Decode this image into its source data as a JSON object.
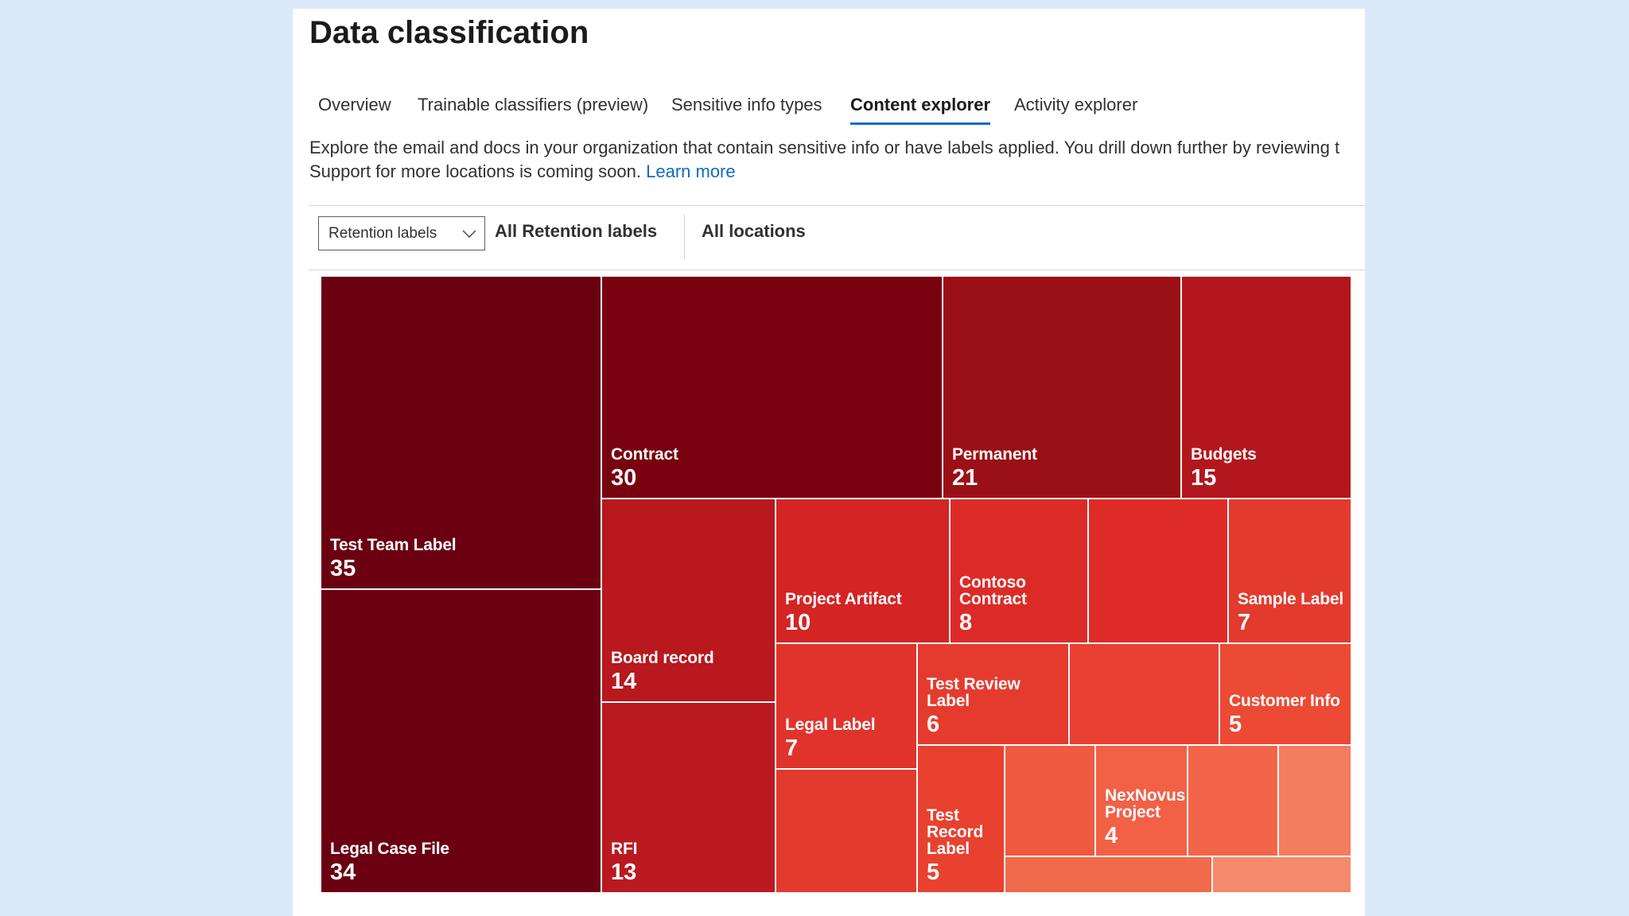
{
  "page": {
    "title": "Data classification"
  },
  "tabs": [
    {
      "label": "Overview",
      "active": false
    },
    {
      "label": "Trainable classifiers (preview)",
      "active": false
    },
    {
      "label": "Sensitive info types",
      "active": false
    },
    {
      "label": "Content explorer",
      "active": true
    },
    {
      "label": "Activity explorer",
      "active": false
    }
  ],
  "description": {
    "line1": "Explore the email and docs in your organization that contain sensitive info or have labels applied. You drill down further by reviewing t",
    "line2": "Support for more locations is coming soon.",
    "learn_more": "Learn more"
  },
  "filters": {
    "dropdown_value": "Retention labels",
    "dropdown_icon": "chevron-down-icon",
    "retention_filter": "All Retention labels",
    "location_filter": "All locations"
  },
  "colors": {
    "accent": "#0f6cbd",
    "link": "#0f6cbd"
  },
  "chart_data": {
    "type": "treemap",
    "title": "Retention labels",
    "items": [
      {
        "label": "Test Team Label",
        "value": 35,
        "color": "#6a0010"
      },
      {
        "label": "Legal Case File",
        "value": 34,
        "color": "#6b0011"
      },
      {
        "label": "Contract",
        "value": 30,
        "color": "#79020f"
      },
      {
        "label": "Permanent",
        "value": 21,
        "color": "#9b1016"
      },
      {
        "label": "Budgets",
        "value": 15,
        "color": "#b3171d"
      },
      {
        "label": "Board record",
        "value": 14,
        "color": "#b8181e"
      },
      {
        "label": "RFI",
        "value": 13,
        "color": "#ba1a1f"
      },
      {
        "label": "Project Artifact",
        "value": 10,
        "color": "#d42424"
      },
      {
        "label": "Contoso Contract",
        "value": 8,
        "color": "#dc2b27"
      },
      {
        "label": "",
        "value": null,
        "color": "#df2b27"
      },
      {
        "label": "Sample Label",
        "value": 7,
        "color": "#e33a2e"
      },
      {
        "label": "Legal Label",
        "value": 7,
        "color": "#e0332b"
      },
      {
        "label": "Test Review Label",
        "value": 6,
        "color": "#e53b2f"
      },
      {
        "label": "",
        "value": null,
        "color": "#e84033"
      },
      {
        "label": "Customer Info",
        "value": 5,
        "color": "#ec4a35"
      },
      {
        "label": "",
        "value": null,
        "color": "#e33a2e"
      },
      {
        "label": "Test Record Label",
        "value": 5,
        "color": "#e8412f"
      },
      {
        "label": "",
        "value": null,
        "color": "#f05a40"
      },
      {
        "label": "NexNovus Project",
        "value": 4,
        "color": "#f26046"
      },
      {
        "label": "",
        "value": null,
        "color": "#f2654a"
      },
      {
        "label": "",
        "value": null,
        "color": "#f47c5f"
      },
      {
        "label": "",
        "value": null,
        "color": "#f26a4c"
      },
      {
        "label": "",
        "value": null,
        "color": "#f58a6c"
      }
    ]
  }
}
